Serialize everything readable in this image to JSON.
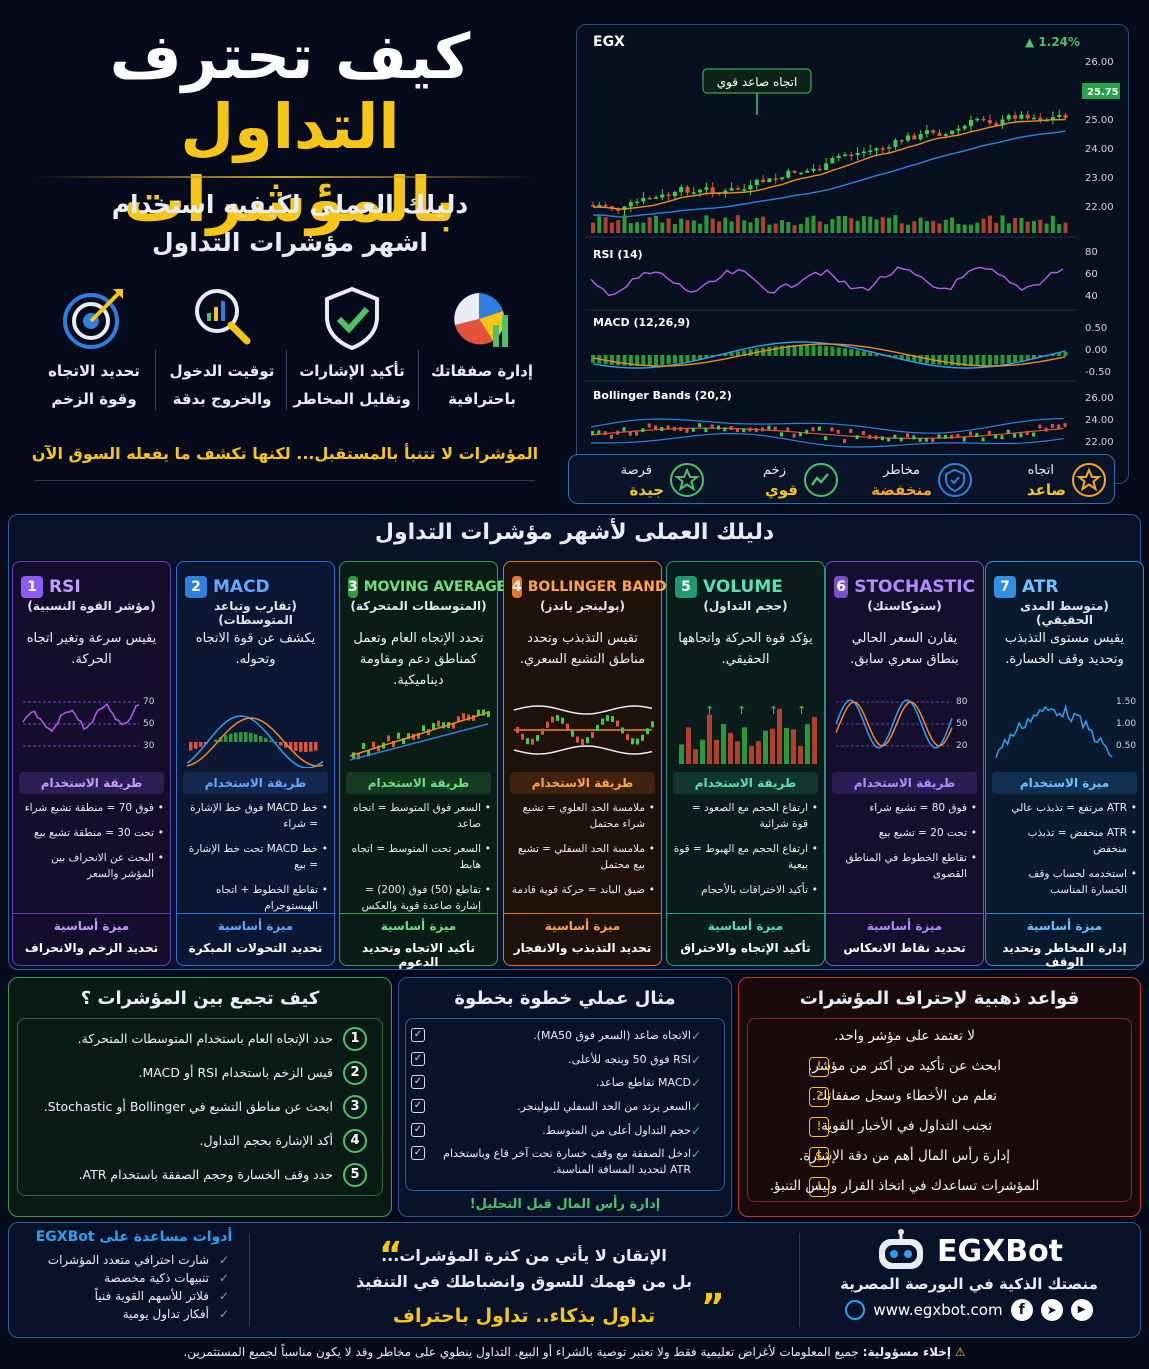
{
  "hero": {
    "title_line1": "كيف تحترف",
    "title_line2": "التداول بالمؤشرات",
    "subtitle_line1": "دليلك العملى لكيفيه استخدام",
    "subtitle_line2": "اشهر مؤشرات التداول",
    "features": [
      {
        "line1": "تحديد الاتجاه",
        "line2": "وقوة الزخم",
        "icon": "target-icon"
      },
      {
        "line1": "توقيت الدخول",
        "line2": "والخروج بدقة",
        "icon": "magnifier-chart-icon"
      },
      {
        "line1": "تأكيد الإشارات",
        "line2": "وتقليل المخاطر",
        "icon": "shield-check-icon"
      },
      {
        "line1": "إدارة صفقاتك",
        "line2": "باحترافية",
        "icon": "pie-chart-icon"
      }
    ],
    "quote": "المؤشرات لا تتنبأ بالمستقبل... لكنها تكشف ما يفعله السوق الآن"
  },
  "chart_panel": {
    "symbol": "EGX",
    "change": "▲ 1.24%",
    "annotation": "اتجاه صاعد قوي",
    "last_price_tag": "25.75",
    "price_ticks": [
      "26.00",
      "25.00",
      "24.00",
      "23.00",
      "22.00"
    ],
    "rsi_label": "RSI (14)",
    "rsi_ticks": [
      "80",
      "60",
      "40"
    ],
    "macd_label": "MACD (12,26,9)",
    "macd_ticks": [
      "0.50",
      "0.00",
      "-0.50"
    ],
    "bb_label": "Bollinger Bands (20,2)",
    "bb_ticks": [
      "26.00",
      "24.00",
      "22.00"
    ]
  },
  "status": [
    {
      "label": "اتجاه",
      "value": "صاعد",
      "color": "#f5c518",
      "icon": "star-icon"
    },
    {
      "label": "مخاطر",
      "value": "منخفضة",
      "color": "#f5a623",
      "icon": "shield-icon"
    },
    {
      "label": "زخم",
      "value": "قوي",
      "color": "#f5c518",
      "icon": "trend-icon"
    },
    {
      "label": "فرصة",
      "value": "جيدة",
      "color": "#f5c518",
      "icon": "star-icon"
    }
  ],
  "guide": {
    "title": "دليلك العملى لأشهر مؤشرات التداول",
    "cards": [
      {
        "num": "1",
        "name": "RSI",
        "sub": "(مؤشر القوة النسبية)",
        "desc": "يقيس سرعة وتغير اتجاه الحركة.",
        "ticks": [
          "70",
          "50",
          "30"
        ],
        "usage_title": "طريقة الاستخدام",
        "items": [
          "فوق 70 = منطقة تشبع شراء",
          "تحت 30 = منطقة تشبع بيع",
          "البحث عن الانحراف بين المؤشر والسعر"
        ],
        "feature_title": "ميزة أساسية",
        "feature": "تحديد الزخم والانحراف"
      },
      {
        "num": "2",
        "name": "MACD",
        "sub": "(تقارب وتباعد المتوسطات)",
        "desc": "يكشف عن قوة الاتجاه وتحوله.",
        "ticks": [],
        "usage_title": "طريقة الاستخدام",
        "items": [
          "خط MACD فوق خط الإشارة = شراء",
          "خط MACD تحت خط الإشارة = بيع",
          "تقاطع الخطوط + اتجاه الهيستوجرام"
        ],
        "feature_title": "ميزة أساسية",
        "feature": "تحديد التحولات المبكرة"
      },
      {
        "num": "3",
        "name": "MOVING AVERAGES",
        "sub": "(المتوسطات المتحركة)",
        "desc": "تحدد الإتجاه العام وتعمل كمناطق دعم ومقاومة ديناميكية.",
        "ticks": [],
        "usage_title": "طريقة الاستخدام",
        "items": [
          "السعر فوق المتوسط = اتجاه صاعد",
          "السعر تحت المتوسط = اتجاه هابط",
          "تقاطع (50) فوق (200) = إشارة صاعدة قوية والعكس"
        ],
        "feature_title": "ميزة أساسية",
        "feature": "تأكيد الاتجاه وتحديد الدعوم"
      },
      {
        "num": "4",
        "name": "BOLLINGER BANDS",
        "sub": "(بولينجر باندز)",
        "desc": "تقيس التذبذب وتحدد مناطق التشبع السعري.",
        "ticks": [],
        "usage_title": "طريقة الاستخدام",
        "items": [
          "ملامسة الحد العلوي = تشبع شراء محتمل",
          "ملامسة الحد السفلي = تشبع بيع محتمل",
          "ضيق الباند = حركة قوية قادمة"
        ],
        "feature_title": "ميزة أساسية",
        "feature": "تحديد التذبذب والانفجار"
      },
      {
        "num": "5",
        "name": "VOLUME",
        "sub": "(حجم التداول)",
        "desc": "يؤكد قوة الحركة واتجاهها الحقيقي.",
        "ticks": [],
        "usage_title": "طريقة الاستخدام",
        "items": [
          "ارتفاع الحجم مع الصعود = قوة شرائية",
          "ارتفاع الحجم مع الهبوط = قوة بيعية",
          "تأكيد الاختراقات بالأحجام"
        ],
        "feature_title": "ميزة أساسية",
        "feature": "تأكيد الإتجاه والاختراق"
      },
      {
        "num": "6",
        "name": "STOCHASTIC",
        "sub": "(ستوكاستك)",
        "desc": "يقارن السعر الحالي بنطاق سعري سابق.",
        "ticks": [
          "80",
          "50",
          "20"
        ],
        "usage_title": "طريقة الاستخدام",
        "items": [
          "فوق 80 = تشبع شراء",
          "تحت 20 = تشبع بيع",
          "تقاطع الخطوط في المناطق القصوى"
        ],
        "feature_title": "ميزة أساسية",
        "feature": "تحديد نقاط الانعكاس"
      },
      {
        "num": "7",
        "name": "ATR",
        "sub": "(متوسط المدى الحقيقي)",
        "desc": "يقيس مستوى التذبذب وتحديد وقف الخسارة.",
        "ticks": [
          "1.50",
          "1.00",
          "0.50"
        ],
        "usage_title": "ميزة الاستخدام",
        "items": [
          "ATR مرتفع = تذبذب عالي",
          "ATR منخفض = تذبذب منخفض",
          "استخدمه لحساب وقف الخسارة المناسب"
        ],
        "feature_title": "ميزة أساسية",
        "feature": "إدارة المخاطر وتحديد الوقف"
      }
    ]
  },
  "combine": {
    "title": "كيف تجمع بين المؤشرات ؟",
    "steps": [
      {
        "n": "1",
        "text": "حدد الإتجاه العام باستخدام المتوسطات المتحركة."
      },
      {
        "n": "2",
        "text": "قيس الزخم باستخدام RSI أو MACD."
      },
      {
        "n": "3",
        "text": "ابحث عن مناطق التشبع في Bollinger أو Stochastic."
      },
      {
        "n": "4",
        "text": "أكد الإشارة بحجم التداول."
      },
      {
        "n": "5",
        "text": "حدد وقف الخسارة وحجم الصفقة باستخدام ATR."
      }
    ]
  },
  "example": {
    "title": "مثال عملي خطوة بخطوة",
    "steps": [
      "الاتجاه صاعد (السعر فوق MA50).",
      "RSI فوق 50 ويتجه للأعلى.",
      "MACD تقاطع صاعد.",
      "السعر يرتد من الحد السفلي للبولينجر.",
      "حجم التداول أعلى من المتوسط.",
      "ادخل الصفقة مع وقف خسارة تحت آخر قاع وباستخدام ATR لتحديد المسافة المناسبة."
    ],
    "footer": "إدارة رأس المال قبل التحليل!"
  },
  "rules": {
    "title": "قواعد ذهبية لإحتراف المؤشرات",
    "items": [
      "لا تعتمد على مؤشر واحد.",
      "ابحث عن تأكيد من أكثر من مؤشر.",
      "تعلم من الأخطاء وسجل صفقاتك.",
      "تجنب التداول في الأخبار القوية.",
      "إدارة رأس المال أهم من دقة الإشارة.",
      "المؤشرات تساعدك في اتخاذ القرار وليس التنبؤ."
    ]
  },
  "footer": {
    "tools_title": "أدوات مساعدة على EGXBot",
    "tools": [
      "شارت احترافي متعدد المؤشرات",
      "تنبيهات ذكية مخصصة",
      "فلاتر للأسهم القوية فنياً",
      "أفكار تداول يومية"
    ],
    "quote_line1": "الإتقان لا يأتي من كثرة المؤشرات...",
    "quote_line2": "بل من فهمك للسوق وانضباطك في التنفيذ",
    "quote_line3": "تداول بذكاء.. تداول باحتراف",
    "brand": "EGXBot",
    "tagline": "منصتك الذكية في البورصة المصرية",
    "website": "www.egxbot.com"
  },
  "disclaimer": {
    "bold": "إخلاء مسؤولية:",
    "text": " جميع المعلومات لأغراض تعليمية فقط ولا تعتبر توصية بالشراء أو البيع. التداول ينطوي على مخاطر وقد لا يكون مناسباً لجميع المستثمرين."
  }
}
